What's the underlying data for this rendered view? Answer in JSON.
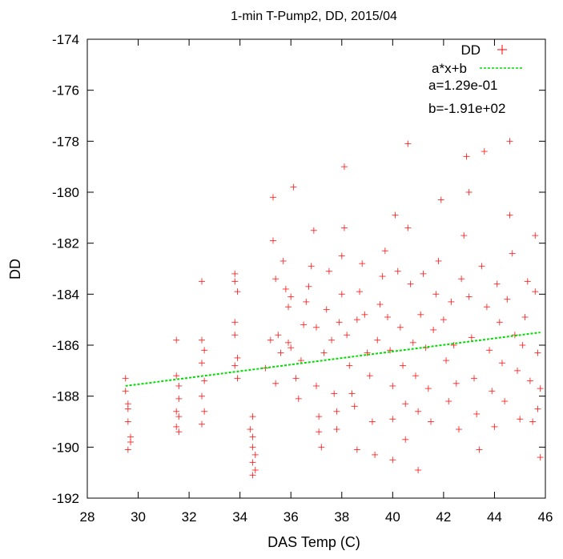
{
  "chart_data": {
    "type": "scatter",
    "title": "1-min T-Pump2, DD, 2015/04",
    "xlabel": "DAS Temp (C)",
    "ylabel": "DD",
    "xlim": [
      28,
      46
    ],
    "ylim": [
      -192,
      -174
    ],
    "xticks": [
      "28",
      "30",
      "32",
      "34",
      "36",
      "38",
      "40",
      "42",
      "44",
      "46"
    ],
    "yticks": [
      "-192",
      "-190",
      "-188",
      "-186",
      "-184",
      "-182",
      "-180",
      "-178",
      "-176",
      "-174"
    ],
    "grid": false,
    "legend_position": "top-right",
    "series": [
      {
        "name": "DD",
        "marker": "plus",
        "color": "#ff0000",
        "points": [
          [
            29.5,
            -187.3
          ],
          [
            29.5,
            -187.8
          ],
          [
            29.6,
            -188.3
          ],
          [
            29.6,
            -188.5
          ],
          [
            29.6,
            -189.0
          ],
          [
            29.7,
            -189.6
          ],
          [
            29.7,
            -189.8
          ],
          [
            29.6,
            -190.1
          ],
          [
            31.5,
            -185.8
          ],
          [
            31.5,
            -187.2
          ],
          [
            31.6,
            -187.6
          ],
          [
            31.6,
            -188.1
          ],
          [
            31.5,
            -188.6
          ],
          [
            31.6,
            -188.8
          ],
          [
            31.5,
            -189.2
          ],
          [
            31.6,
            -189.4
          ],
          [
            32.5,
            -183.5
          ],
          [
            32.5,
            -185.8
          ],
          [
            32.6,
            -186.2
          ],
          [
            32.5,
            -186.7
          ],
          [
            32.6,
            -187.4
          ],
          [
            32.5,
            -188.0
          ],
          [
            32.6,
            -188.6
          ],
          [
            32.5,
            -189.1
          ],
          [
            33.8,
            -183.2
          ],
          [
            33.8,
            -183.5
          ],
          [
            33.9,
            -183.9
          ],
          [
            33.8,
            -185.1
          ],
          [
            33.8,
            -185.6
          ],
          [
            33.9,
            -186.5
          ],
          [
            33.8,
            -186.8
          ],
          [
            33.9,
            -187.3
          ],
          [
            34.5,
            -188.8
          ],
          [
            34.5,
            -189.6
          ],
          [
            34.5,
            -190.0
          ],
          [
            34.5,
            -190.6
          ],
          [
            34.6,
            -190.9
          ],
          [
            34.5,
            -191.1
          ],
          [
            34.6,
            -190.3
          ],
          [
            34.4,
            -189.3
          ],
          [
            35.0,
            -186.9
          ],
          [
            35.2,
            -185.8
          ],
          [
            35.3,
            -181.9
          ],
          [
            35.3,
            -180.2
          ],
          [
            35.4,
            -183.4
          ],
          [
            35.5,
            -185.6
          ],
          [
            35.6,
            -186.3
          ],
          [
            35.4,
            -187.5
          ],
          [
            35.7,
            -182.7
          ],
          [
            35.8,
            -183.8
          ],
          [
            35.9,
            -184.5
          ],
          [
            35.9,
            -185.9
          ],
          [
            36.0,
            -186.1
          ],
          [
            36.0,
            -184.1
          ],
          [
            36.1,
            -179.8
          ],
          [
            36.2,
            -187.3
          ],
          [
            36.3,
            -188.1
          ],
          [
            36.4,
            -186.6
          ],
          [
            36.5,
            -185.2
          ],
          [
            36.6,
            -184.3
          ],
          [
            36.7,
            -183.7
          ],
          [
            36.8,
            -182.9
          ],
          [
            36.9,
            -181.5
          ],
          [
            37.0,
            -185.3
          ],
          [
            37.0,
            -187.6
          ],
          [
            37.1,
            -188.8
          ],
          [
            37.1,
            -189.4
          ],
          [
            37.2,
            -190.0
          ],
          [
            37.3,
            -186.3
          ],
          [
            37.4,
            -184.6
          ],
          [
            37.5,
            -183.1
          ],
          [
            37.6,
            -185.8
          ],
          [
            37.7,
            -187.9
          ],
          [
            37.8,
            -188.6
          ],
          [
            37.8,
            -189.3
          ],
          [
            37.9,
            -185.1
          ],
          [
            38.0,
            -184.0
          ],
          [
            38.0,
            -182.5
          ],
          [
            38.1,
            -179.0
          ],
          [
            38.1,
            -181.4
          ],
          [
            38.2,
            -185.6
          ],
          [
            38.3,
            -186.8
          ],
          [
            38.4,
            -187.9
          ],
          [
            38.5,
            -188.4
          ],
          [
            38.6,
            -190.1
          ],
          [
            38.6,
            -185.0
          ],
          [
            38.7,
            -183.9
          ],
          [
            38.8,
            -182.8
          ],
          [
            38.9,
            -184.8
          ],
          [
            39.0,
            -186.3
          ],
          [
            39.1,
            -187.2
          ],
          [
            39.2,
            -189.0
          ],
          [
            39.3,
            -190.3
          ],
          [
            39.4,
            -185.8
          ],
          [
            39.5,
            -184.4
          ],
          [
            39.6,
            -183.3
          ],
          [
            39.7,
            -182.3
          ],
          [
            39.8,
            -184.9
          ],
          [
            39.9,
            -186.2
          ],
          [
            40.0,
            -187.6
          ],
          [
            40.0,
            -188.9
          ],
          [
            40.0,
            -190.5
          ],
          [
            40.1,
            -180.9
          ],
          [
            40.2,
            -183.1
          ],
          [
            40.3,
            -185.3
          ],
          [
            40.4,
            -186.8
          ],
          [
            40.5,
            -188.3
          ],
          [
            40.5,
            -189.7
          ],
          [
            40.6,
            -178.1
          ],
          [
            40.6,
            -181.4
          ],
          [
            40.7,
            -183.6
          ],
          [
            40.8,
            -185.9
          ],
          [
            40.9,
            -187.2
          ],
          [
            41.0,
            -188.6
          ],
          [
            41.0,
            -190.9
          ],
          [
            41.1,
            -184.8
          ],
          [
            41.2,
            -183.2
          ],
          [
            41.3,
            -186.1
          ],
          [
            41.4,
            -187.7
          ],
          [
            41.5,
            -189.0
          ],
          [
            41.6,
            -185.4
          ],
          [
            41.7,
            -184.0
          ],
          [
            41.8,
            -182.7
          ],
          [
            41.9,
            -180.3
          ],
          [
            42.0,
            -185.0
          ],
          [
            42.1,
            -186.6
          ],
          [
            42.2,
            -188.2
          ],
          [
            42.3,
            -184.3
          ],
          [
            42.4,
            -186.0
          ],
          [
            42.5,
            -187.5
          ],
          [
            42.6,
            -189.3
          ],
          [
            42.7,
            -183.4
          ],
          [
            42.8,
            -181.7
          ],
          [
            42.9,
            -178.6
          ],
          [
            43.0,
            -180.0
          ],
          [
            43.0,
            -184.1
          ],
          [
            43.1,
            -185.7
          ],
          [
            43.2,
            -187.3
          ],
          [
            43.3,
            -188.7
          ],
          [
            43.4,
            -190.1
          ],
          [
            43.5,
            -182.9
          ],
          [
            43.6,
            -178.4
          ],
          [
            43.7,
            -184.5
          ],
          [
            43.8,
            -186.2
          ],
          [
            43.9,
            -187.8
          ],
          [
            44.0,
            -189.2
          ],
          [
            44.1,
            -183.6
          ],
          [
            44.2,
            -185.1
          ],
          [
            44.3,
            -186.7
          ],
          [
            44.4,
            -188.2
          ],
          [
            44.5,
            -184.2
          ],
          [
            44.6,
            -180.9
          ],
          [
            44.6,
            -178.0
          ],
          [
            44.7,
            -182.4
          ],
          [
            44.8,
            -185.6
          ],
          [
            44.9,
            -187.0
          ],
          [
            45.0,
            -188.9
          ],
          [
            45.1,
            -186.0
          ],
          [
            45.2,
            -184.9
          ],
          [
            45.3,
            -183.5
          ],
          [
            45.4,
            -187.4
          ],
          [
            45.5,
            -189.0
          ],
          [
            45.6,
            -181.7
          ],
          [
            45.6,
            -183.9
          ],
          [
            45.7,
            -186.3
          ],
          [
            45.7,
            -188.5
          ],
          [
            45.8,
            -190.4
          ],
          [
            45.8,
            -187.7
          ]
        ]
      },
      {
        "name": "a*x+b",
        "type": "line",
        "style": "dashed",
        "color": "#00dd00",
        "x": [
          29.5,
          45.8
        ],
        "values": [
          -187.6,
          -185.5
        ]
      }
    ],
    "annotations": [
      "a=1.29e-01",
      "b=-1.91e+02"
    ]
  }
}
